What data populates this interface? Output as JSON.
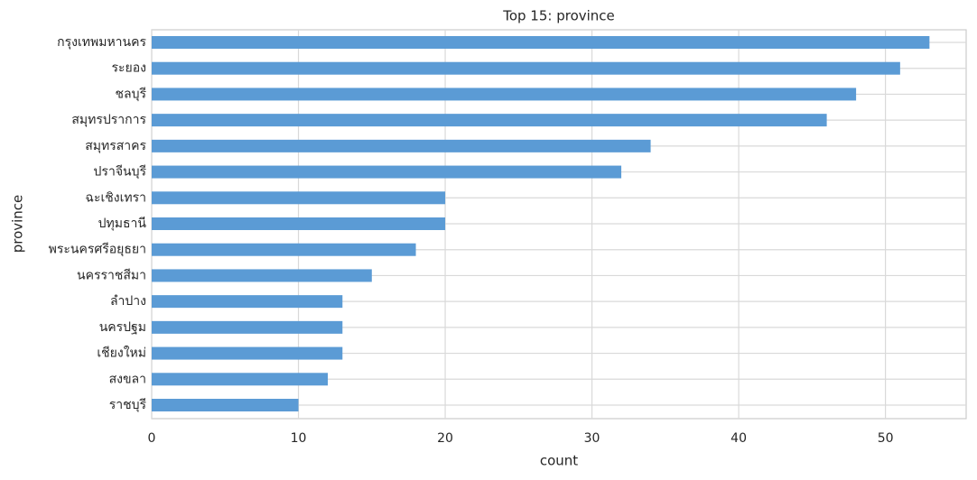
{
  "chart_data": {
    "type": "barh",
    "title": "Top 15: province",
    "xlabel": "count",
    "ylabel": "province",
    "categories": [
      "กรุงเทพมหานคร",
      "ระยอง",
      "ชลบุรี",
      "สมุทรปราการ",
      "สมุทรสาคร",
      "ปราจีนบุรี",
      "ฉะเชิงเทรา",
      "ปทุมธานี",
      "พระนครศรีอยุธยา",
      "นครราชสีมา",
      "ลำปาง",
      "นครปฐม",
      "เชียงใหม่",
      "สงขลา",
      "ราชบุรี"
    ],
    "values": [
      53,
      51,
      48,
      46,
      34,
      32,
      20,
      20,
      18,
      15,
      13,
      13,
      13,
      12,
      10
    ],
    "color": "#5b9bd5",
    "xlim": [
      0,
      55.5
    ],
    "xticks": [
      0,
      10,
      20,
      30,
      40,
      50
    ],
    "grid": true
  }
}
